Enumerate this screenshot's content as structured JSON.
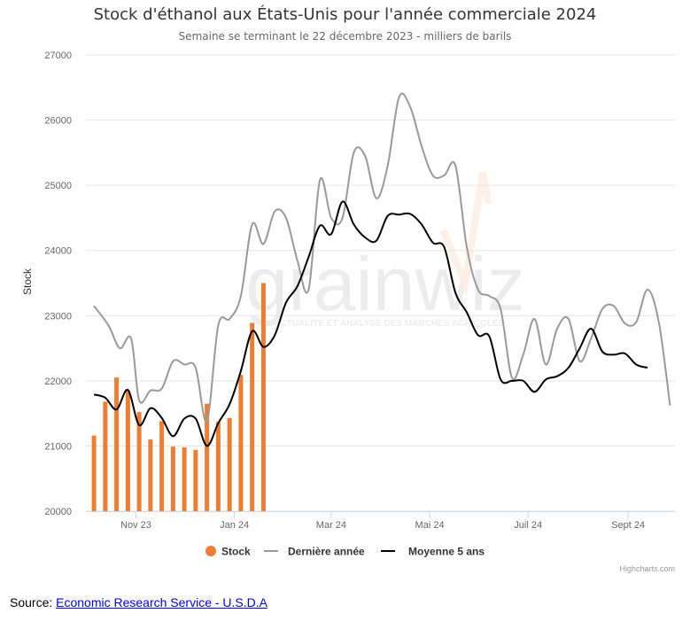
{
  "chart_data": {
    "type": "bar+line",
    "title": "Stock d'éthanol aux États-Unis pour l'année commerciale 2024",
    "subtitle": "Semaine se terminant le 22 décembre 2023 - milliers de barils",
    "ylabel": "Stock",
    "ylim": [
      20000,
      27000
    ],
    "yticks": [
      20000,
      21000,
      22000,
      23000,
      24000,
      25000,
      26000,
      27000
    ],
    "x_range": [
      "2023-10-01",
      "2024-09-30"
    ],
    "xticks": [
      {
        "date": "2023-11-01",
        "label": "Nov 23"
      },
      {
        "date": "2024-01-01",
        "label": "Jan 24"
      },
      {
        "date": "2024-03-01",
        "label": "Mar 24"
      },
      {
        "date": "2024-05-01",
        "label": "Mai 24"
      },
      {
        "date": "2024-07-01",
        "label": "Juil 24"
      },
      {
        "date": "2024-09-01",
        "label": "Sept 24"
      }
    ],
    "grid": true,
    "legend_position": "bottom",
    "series": [
      {
        "name": "Stock",
        "type": "bar",
        "color": "#ed7d31",
        "points": [
          [
            "2023-10-06",
            21160
          ],
          [
            "2023-10-13",
            21680
          ],
          [
            "2023-10-20",
            22050
          ],
          [
            "2023-10-27",
            21850
          ],
          [
            "2023-11-03",
            21520
          ],
          [
            "2023-11-10",
            21100
          ],
          [
            "2023-11-17",
            21380
          ],
          [
            "2023-11-24",
            20990
          ],
          [
            "2023-12-01",
            20980
          ],
          [
            "2023-12-08",
            20940
          ],
          [
            "2023-12-15",
            21650
          ],
          [
            "2023-12-22",
            21370
          ],
          [
            "2023-12-29",
            21430
          ],
          [
            "2024-01-05",
            22090
          ],
          [
            "2024-01-12",
            22890
          ],
          [
            "2024-01-19",
            23500
          ]
        ]
      },
      {
        "name": "Dernière année",
        "type": "line",
        "color": "#999999",
        "points": [
          [
            "2023-10-06",
            23150
          ],
          [
            "2023-10-15",
            22850
          ],
          [
            "2023-10-22",
            22500
          ],
          [
            "2023-10-29",
            22650
          ],
          [
            "2023-11-03",
            21700
          ],
          [
            "2023-11-10",
            21850
          ],
          [
            "2023-11-17",
            21880
          ],
          [
            "2023-11-24",
            22300
          ],
          [
            "2023-12-01",
            22250
          ],
          [
            "2023-12-08",
            22200
          ],
          [
            "2023-12-15",
            21380
          ],
          [
            "2023-12-22",
            22850
          ],
          [
            "2023-12-29",
            22950
          ],
          [
            "2024-01-05",
            23300
          ],
          [
            "2024-01-12",
            24400
          ],
          [
            "2024-01-19",
            24100
          ],
          [
            "2024-01-26",
            24600
          ],
          [
            "2024-02-02",
            24500
          ],
          [
            "2024-02-09",
            23850
          ],
          [
            "2024-02-16",
            23400
          ],
          [
            "2024-02-23",
            25080
          ],
          [
            "2024-03-01",
            24500
          ],
          [
            "2024-03-08",
            24500
          ],
          [
            "2024-03-15",
            25500
          ],
          [
            "2024-03-22",
            25450
          ],
          [
            "2024-03-29",
            24800
          ],
          [
            "2024-04-05",
            25300
          ],
          [
            "2024-04-12",
            26350
          ],
          [
            "2024-04-19",
            26200
          ],
          [
            "2024-04-26",
            25600
          ],
          [
            "2024-05-03",
            25150
          ],
          [
            "2024-05-10",
            25150
          ],
          [
            "2024-05-17",
            25300
          ],
          [
            "2024-05-24",
            24050
          ],
          [
            "2024-05-31",
            23400
          ],
          [
            "2024-06-07",
            23300
          ],
          [
            "2024-06-14",
            23100
          ],
          [
            "2024-06-21",
            22050
          ],
          [
            "2024-06-28",
            22400
          ],
          [
            "2024-07-05",
            22950
          ],
          [
            "2024-07-12",
            22250
          ],
          [
            "2024-07-19",
            22800
          ],
          [
            "2024-07-26",
            22950
          ],
          [
            "2024-08-02",
            22300
          ],
          [
            "2024-08-09",
            22650
          ],
          [
            "2024-08-16",
            23100
          ],
          [
            "2024-08-23",
            23150
          ],
          [
            "2024-08-30",
            22880
          ],
          [
            "2024-09-06",
            22900
          ],
          [
            "2024-09-13",
            23400
          ],
          [
            "2024-09-20",
            22900
          ],
          [
            "2024-09-27",
            21620
          ]
        ]
      },
      {
        "name": "Moyenne 5 ans",
        "type": "line",
        "color": "#000000",
        "points": [
          [
            "2023-10-06",
            21790
          ],
          [
            "2023-10-13",
            21740
          ],
          [
            "2023-10-20",
            21560
          ],
          [
            "2023-10-27",
            21860
          ],
          [
            "2023-11-03",
            21320
          ],
          [
            "2023-11-10",
            21580
          ],
          [
            "2023-11-17",
            21430
          ],
          [
            "2023-11-24",
            21150
          ],
          [
            "2023-12-01",
            21420
          ],
          [
            "2023-12-08",
            21420
          ],
          [
            "2023-12-15",
            21000
          ],
          [
            "2023-12-22",
            21350
          ],
          [
            "2023-12-29",
            21640
          ],
          [
            "2024-01-05",
            22150
          ],
          [
            "2024-01-12",
            22760
          ],
          [
            "2024-01-19",
            22520
          ],
          [
            "2024-01-26",
            22700
          ],
          [
            "2024-02-02",
            23200
          ],
          [
            "2024-02-09",
            23450
          ],
          [
            "2024-02-16",
            23900
          ],
          [
            "2024-02-23",
            24380
          ],
          [
            "2024-03-01",
            24250
          ],
          [
            "2024-03-08",
            24750
          ],
          [
            "2024-03-15",
            24400
          ],
          [
            "2024-03-22",
            24200
          ],
          [
            "2024-03-29",
            24150
          ],
          [
            "2024-04-05",
            24530
          ],
          [
            "2024-04-12",
            24550
          ],
          [
            "2024-04-19",
            24560
          ],
          [
            "2024-04-26",
            24400
          ],
          [
            "2024-05-03",
            24120
          ],
          [
            "2024-05-10",
            24050
          ],
          [
            "2024-05-17",
            23350
          ],
          [
            "2024-05-24",
            23050
          ],
          [
            "2024-05-31",
            22700
          ],
          [
            "2024-06-07",
            22680
          ],
          [
            "2024-06-14",
            22020
          ],
          [
            "2024-06-21",
            22000
          ],
          [
            "2024-06-28",
            22000
          ],
          [
            "2024-07-05",
            21830
          ],
          [
            "2024-07-12",
            22020
          ],
          [
            "2024-07-19",
            22070
          ],
          [
            "2024-07-26",
            22200
          ],
          [
            "2024-08-02",
            22500
          ],
          [
            "2024-08-09",
            22800
          ],
          [
            "2024-08-16",
            22450
          ],
          [
            "2024-08-23",
            22400
          ],
          [
            "2024-08-30",
            22420
          ],
          [
            "2024-09-06",
            22250
          ],
          [
            "2024-09-13",
            22200
          ]
        ]
      }
    ],
    "watermark": {
      "brand": "grainwiz",
      "tagline": "L'ACTUALITÉ ET ANALYSE DES MARCHÉS AGRICOLES"
    },
    "credits": "Highcharts.com"
  },
  "source": {
    "label": "Source:",
    "link_text": "Economic Research Service - U.S.D.A"
  }
}
